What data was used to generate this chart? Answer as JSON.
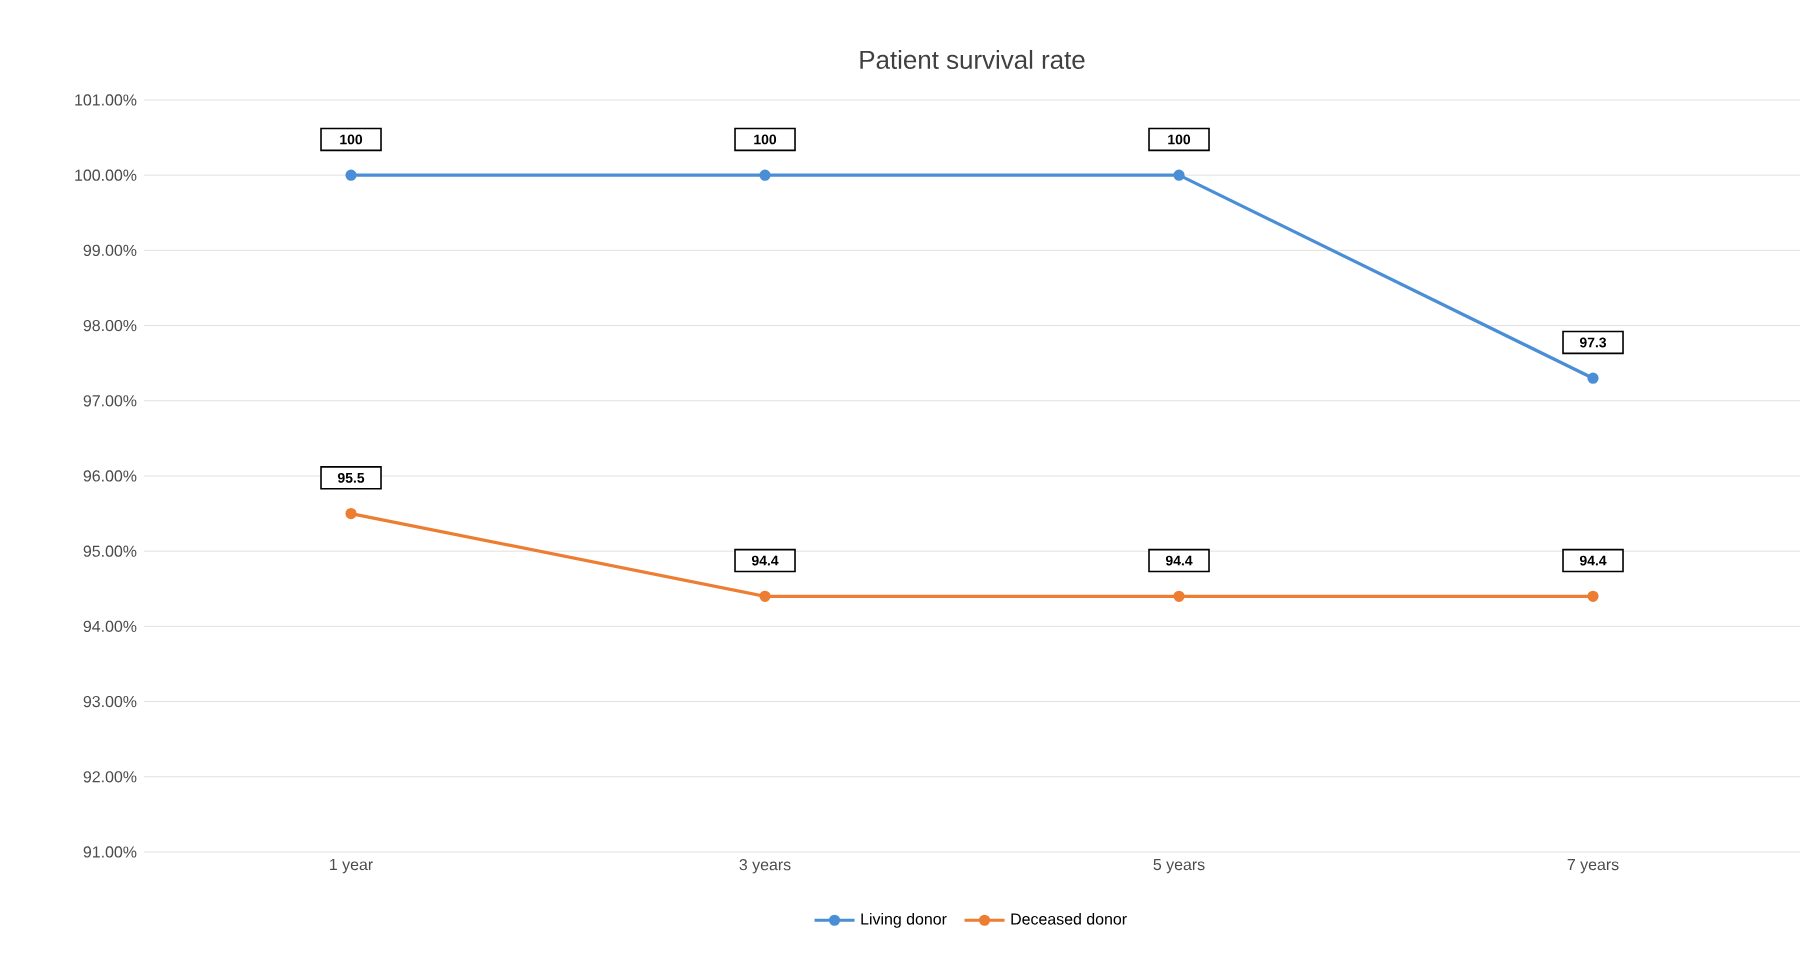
{
  "chart_data": {
    "type": "line",
    "title": "Patient survival rate",
    "categories": [
      "1 year",
      "3 years",
      "5 years",
      "7 years"
    ],
    "series": [
      {
        "name": "Living donor",
        "color": "#4a8fd6",
        "values": [
          100,
          100,
          100,
          97.3
        ],
        "value_labels": [
          "100",
          "100",
          "100",
          "97.3"
        ]
      },
      {
        "name": "Deceased donor",
        "color": "#ed7d31",
        "values": [
          95.5,
          94.4,
          94.4,
          94.4
        ],
        "value_labels": [
          "95.5",
          "94.4",
          "94.4",
          "94.4"
        ]
      }
    ],
    "ylim": [
      91,
      101
    ],
    "yticks": [
      {
        "value": 91,
        "label": "91.00%"
      },
      {
        "value": 92,
        "label": "92.00%"
      },
      {
        "value": 93,
        "label": "93.00%"
      },
      {
        "value": 94,
        "label": "94.00%"
      },
      {
        "value": 95,
        "label": "95.00%"
      },
      {
        "value": 96,
        "label": "96.00%"
      },
      {
        "value": 97,
        "label": "97.00%"
      },
      {
        "value": 98,
        "label": "98.00%"
      },
      {
        "value": 99,
        "label": "99.00%"
      },
      {
        "value": 100,
        "label": "100.00%"
      },
      {
        "value": 101,
        "label": "101.00%"
      }
    ],
    "grid": "y",
    "legend": "bottom",
    "marker": "circle",
    "line_style": "solid"
  }
}
